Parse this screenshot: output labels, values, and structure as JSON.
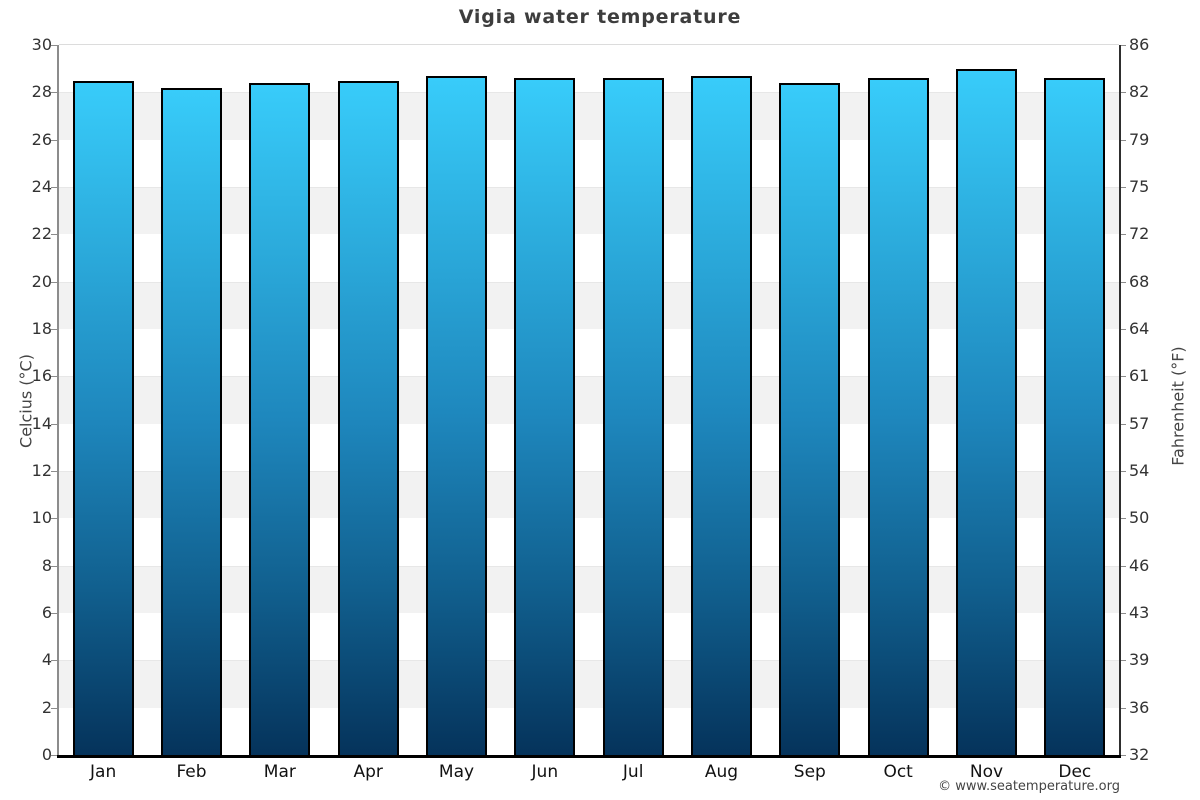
{
  "chart_data": {
    "type": "bar",
    "title": "Vigia water temperature",
    "categories": [
      "Jan",
      "Feb",
      "Mar",
      "Apr",
      "May",
      "Jun",
      "Jul",
      "Aug",
      "Sep",
      "Oct",
      "Nov",
      "Dec"
    ],
    "values": [
      28.5,
      28.2,
      28.4,
      28.5,
      28.7,
      28.6,
      28.6,
      28.7,
      28.4,
      28.6,
      29.0,
      28.6
    ],
    "ylabel_left": "Celcius (°C)",
    "ylabel_right": "Fahrenheit (°F)",
    "ylim": [
      0,
      30
    ],
    "yticks_celsius": [
      0,
      2,
      4,
      6,
      8,
      10,
      12,
      14,
      16,
      18,
      20,
      22,
      24,
      26,
      28,
      30
    ],
    "yticks_fahrenheit": [
      "32",
      "36",
      "39",
      "43",
      "46",
      "50",
      "54",
      "57",
      "61",
      "64",
      "68",
      "72",
      "75",
      "79",
      "82",
      "86"
    ],
    "grid": "alternating-horizontal-bands",
    "legend": null,
    "bar_colors": {
      "top": "#38ccfa",
      "mid": "#1e87bd",
      "bottom": "#05335b",
      "border": "#000000"
    },
    "band_color": "#f2f2f2"
  },
  "footer": {
    "copyright": "© www.seatemperature.org"
  }
}
